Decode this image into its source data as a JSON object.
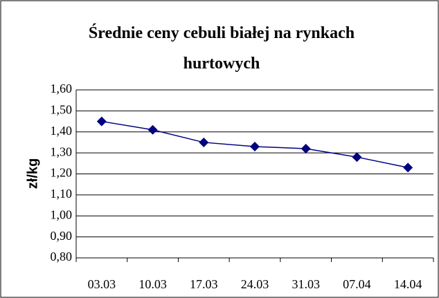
{
  "chart_data": {
    "type": "line",
    "title": "Średnie ceny cebuli białej na rynkach hurtowych",
    "y_label": "zł/kg",
    "categories": [
      "03.03",
      "10.03",
      "17.03",
      "24.03",
      "31.03",
      "07.04",
      "14.04"
    ],
    "values": [
      1.45,
      1.41,
      1.35,
      1.33,
      1.32,
      1.28,
      1.23
    ],
    "color": "#000080",
    "ylim": [
      0.8,
      1.6
    ],
    "yticks": [
      {
        "value": 0.8,
        "label": "0,80"
      },
      {
        "value": 0.9,
        "label": "0,90"
      },
      {
        "value": 1.0,
        "label": "1,00"
      },
      {
        "value": 1.1,
        "label": "1,10"
      },
      {
        "value": 1.2,
        "label": "1,20"
      },
      {
        "value": 1.3,
        "label": "1,30"
      },
      {
        "value": 1.4,
        "label": "1,40"
      },
      {
        "value": 1.5,
        "label": "1,50"
      },
      {
        "value": 1.6,
        "label": "1,60"
      }
    ],
    "grid": true
  }
}
